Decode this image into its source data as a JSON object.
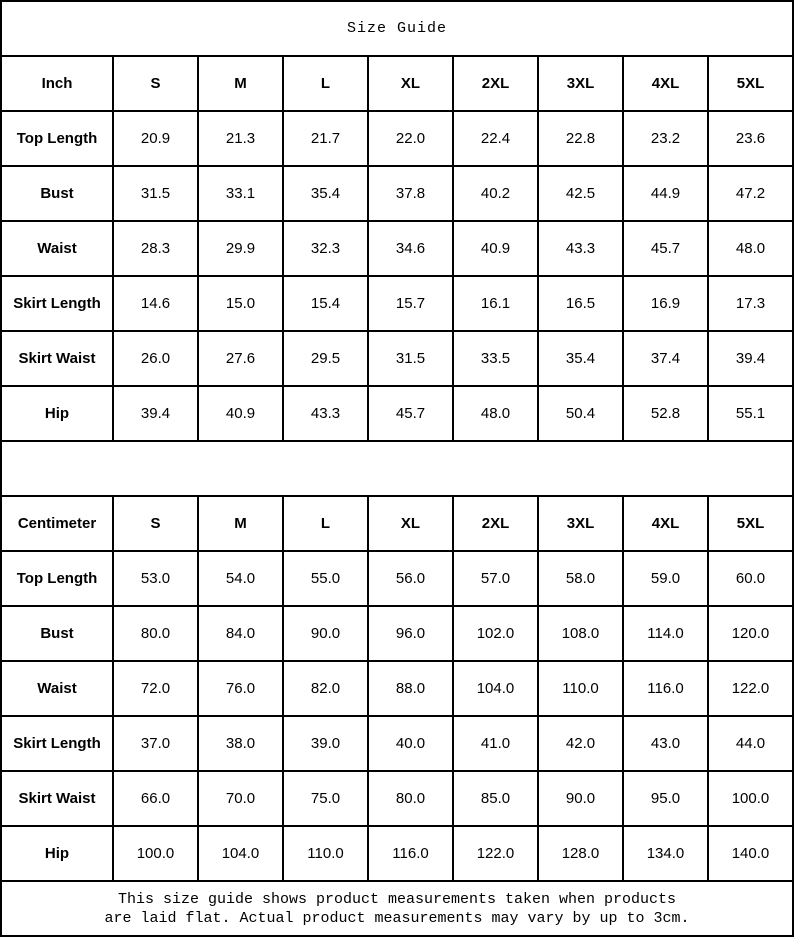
{
  "title": "Size Guide",
  "footer": {
    "line1": "This size guide shows product measurements taken when products",
    "line2": "are laid flat. Actual product measurements may vary by up to 3cm."
  },
  "colors": {
    "background": "#ffffff",
    "border": "#000000",
    "text": "#000000"
  },
  "chart_data": [
    {
      "type": "table",
      "unit": "Inch",
      "columns": [
        "Inch",
        "S",
        "M",
        "L",
        "XL",
        "2XL",
        "3XL",
        "4XL",
        "5XL"
      ],
      "rows": [
        {
          "label": "Top Length",
          "values": [
            "20.9",
            "21.3",
            "21.7",
            "22.0",
            "22.4",
            "22.8",
            "23.2",
            "23.6"
          ]
        },
        {
          "label": "Bust",
          "values": [
            "31.5",
            "33.1",
            "35.4",
            "37.8",
            "40.2",
            "42.5",
            "44.9",
            "47.2"
          ]
        },
        {
          "label": "Waist",
          "values": [
            "28.3",
            "29.9",
            "32.3",
            "34.6",
            "40.9",
            "43.3",
            "45.7",
            "48.0"
          ]
        },
        {
          "label": "Skirt Length",
          "values": [
            "14.6",
            "15.0",
            "15.4",
            "15.7",
            "16.1",
            "16.5",
            "16.9",
            "17.3"
          ]
        },
        {
          "label": "Skirt Waist",
          "values": [
            "26.0",
            "27.6",
            "29.5",
            "31.5",
            "33.5",
            "35.4",
            "37.4",
            "39.4"
          ]
        },
        {
          "label": "Hip",
          "values": [
            "39.4",
            "40.9",
            "43.3",
            "45.7",
            "48.0",
            "50.4",
            "52.8",
            "55.1"
          ]
        }
      ]
    },
    {
      "type": "table",
      "unit": "Centimeter",
      "columns": [
        "Centimeter",
        "S",
        "M",
        "L",
        "XL",
        "2XL",
        "3XL",
        "4XL",
        "5XL"
      ],
      "rows": [
        {
          "label": "Top Length",
          "values": [
            "53.0",
            "54.0",
            "55.0",
            "56.0",
            "57.0",
            "58.0",
            "59.0",
            "60.0"
          ]
        },
        {
          "label": "Bust",
          "values": [
            "80.0",
            "84.0",
            "90.0",
            "96.0",
            "102.0",
            "108.0",
            "114.0",
            "120.0"
          ]
        },
        {
          "label": "Waist",
          "values": [
            "72.0",
            "76.0",
            "82.0",
            "88.0",
            "104.0",
            "110.0",
            "116.0",
            "122.0"
          ]
        },
        {
          "label": "Skirt Length",
          "values": [
            "37.0",
            "38.0",
            "39.0",
            "40.0",
            "41.0",
            "42.0",
            "43.0",
            "44.0"
          ]
        },
        {
          "label": "Skirt Waist",
          "values": [
            "66.0",
            "70.0",
            "75.0",
            "80.0",
            "85.0",
            "90.0",
            "95.0",
            "100.0"
          ]
        },
        {
          "label": "Hip",
          "values": [
            "100.0",
            "104.0",
            "110.0",
            "116.0",
            "122.0",
            "128.0",
            "134.0",
            "140.0"
          ]
        }
      ]
    }
  ]
}
